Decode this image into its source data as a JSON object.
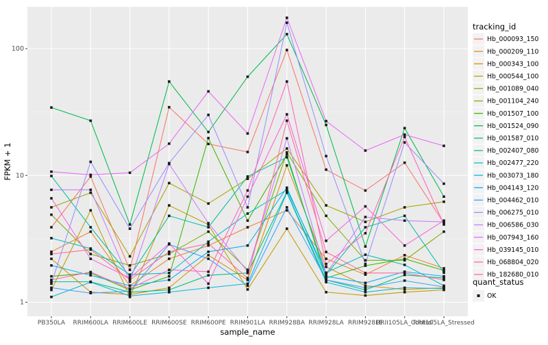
{
  "chart_data": {
    "type": "line",
    "title": "",
    "xlabel": "sample_name",
    "ylabel": "FPKM + 1",
    "y_scale": "log10",
    "y_ticks": [
      "1",
      "10",
      "100"
    ],
    "y_tick_values": [
      1,
      10,
      100
    ],
    "y_minor_values": [
      3.1623,
      31.623
    ],
    "grid": true,
    "legend_position": "right",
    "categories": [
      "PB350LA",
      "RRIM600LA",
      "RRIM600LE",
      "RRIM600SE",
      "RRIM600PE",
      "RRIM901LA",
      "RRIM928BA",
      "RRIM928LA",
      "RRIM928LE",
      "RRII105LA_Control",
      "RRII105LA_Stressed"
    ],
    "legend": {
      "title": "tracking_id"
    },
    "quant_legend": {
      "title": "quant_status",
      "items": [
        {
          "label": "OK",
          "symbol": "black-square"
        }
      ]
    },
    "colors": {
      "background": "#FFFFFF",
      "panel_bg": "#EBEBEB",
      "grid_major": "#FFFFFF",
      "grid_minor": "#F7F7F7",
      "tick_text": "#4D4D4D",
      "axis_title": "#000000",
      "point": "#1A1A1A",
      "legend_key_bg": "#F2F2F2"
    },
    "series": [
      {
        "name": "Hb_000093_150",
        "color": "#F8766D",
        "values": [
          3.9,
          9.8,
          1.8,
          34.5,
          17.7,
          15.3,
          97.5,
          11.1,
          7.6,
          12.6,
          4.2
        ]
      },
      {
        "name": "Hb_000209_110",
        "color": "#EA8331",
        "values": [
          2.5,
          3.6,
          1.35,
          2.2,
          2.8,
          3.9,
          5.3,
          2.2,
          1.65,
          2.35,
          1.85
        ]
      },
      {
        "name": "Hb_000343_100",
        "color": "#D89000",
        "values": [
          2.2,
          1.2,
          1.15,
          1.3,
          2.35,
          1.5,
          12.0,
          1.9,
          1.35,
          1.26,
          1.3
        ]
      },
      {
        "name": "Hb_000544_100",
        "color": "#C09B00",
        "values": [
          1.25,
          5.3,
          1.1,
          5.8,
          4.1,
          1.26,
          3.8,
          1.2,
          1.13,
          1.2,
          1.25
        ]
      },
      {
        "name": "Hb_001089_040",
        "color": "#A3A500",
        "values": [
          5.6,
          7.3,
          2.3,
          8.7,
          6.0,
          9.4,
          16.3,
          5.8,
          4.3,
          5.6,
          6.2
        ]
      },
      {
        "name": "Hb_001104_240",
        "color": "#7CAE00",
        "values": [
          4.9,
          2.4,
          1.95,
          2.4,
          3.6,
          1.8,
          15.2,
          4.8,
          2.14,
          2.14,
          3.6
        ]
      },
      {
        "name": "Hb_001507_100",
        "color": "#39B600",
        "values": [
          1.6,
          1.7,
          1.25,
          1.6,
          19.7,
          4.4,
          14.6,
          1.55,
          1.94,
          2.2,
          1.78
        ]
      },
      {
        "name": "Hb_001524_090",
        "color": "#00BB4E",
        "values": [
          34.3,
          27,
          4.1,
          55,
          22,
          60,
          130,
          25,
          2.75,
          23.6,
          6.8
        ]
      },
      {
        "name": "Hb_001587_010",
        "color": "#00BF7D",
        "values": [
          1.45,
          1.45,
          1.2,
          1.25,
          1.63,
          1.7,
          7.4,
          1.5,
          1.25,
          1.64,
          1.55
        ]
      },
      {
        "name": "Hb_002407_080",
        "color": "#00C1A3",
        "values": [
          9.9,
          3.9,
          1.6,
          4.8,
          3.9,
          9.8,
          13.9,
          1.65,
          3.9,
          4.8,
          1.71
        ]
      },
      {
        "name": "Hb_002477_220",
        "color": "#00BFC4",
        "values": [
          3.2,
          2.65,
          1.65,
          1.7,
          3.0,
          5.0,
          7.7,
          1.71,
          2.37,
          1.97,
          1.35
        ]
      },
      {
        "name": "Hb_003073_180",
        "color": "#00BAE0",
        "values": [
          1.1,
          1.44,
          1.12,
          1.2,
          1.3,
          1.4,
          7.3,
          1.44,
          1.2,
          1.3,
          1.28
        ]
      },
      {
        "name": "Hb_004143_120",
        "color": "#00B0F6",
        "values": [
          1.95,
          1.63,
          1.35,
          1.5,
          2.5,
          2.8,
          8.0,
          1.6,
          1.42,
          1.74,
          1.6
        ]
      },
      {
        "name": "Hb_004462_010",
        "color": "#35A2FF",
        "values": [
          1.3,
          1.18,
          1.22,
          2.86,
          2.2,
          1.35,
          5.6,
          1.5,
          1.3,
          1.48,
          1.32
        ]
      },
      {
        "name": "Hb_006275_010",
        "color": "#9590FF",
        "values": [
          1.4,
          12.8,
          3.8,
          12.5,
          30,
          5.6,
          160,
          14.2,
          2.0,
          18.2,
          8.6
        ]
      },
      {
        "name": "Hb_006586_030",
        "color": "#C77CFF",
        "values": [
          7.7,
          7.7,
          1.45,
          12.3,
          4.2,
          1.75,
          19.6,
          1.68,
          4.7,
          4.4,
          4.3
        ]
      },
      {
        "name": "Hb_007943_160",
        "color": "#E76BF3",
        "values": [
          10.7,
          10.1,
          10.5,
          17.8,
          46,
          21.4,
          175,
          26.8,
          15.7,
          21,
          17.1
        ]
      },
      {
        "name": "Hb_039145_010",
        "color": "#FA62DB",
        "values": [
          6.6,
          2.2,
          1.55,
          2.9,
          1.4,
          6.8,
          30.3,
          3.05,
          5.7,
          2.8,
          4.4
        ]
      },
      {
        "name": "Hb_068804_020",
        "color": "#FF62BC",
        "values": [
          1.5,
          1.73,
          1.28,
          1.8,
          1.74,
          7.6,
          55,
          2.0,
          3.5,
          20.1,
          4.1
        ]
      },
      {
        "name": "Hb_182680_010",
        "color": "#FF6A98",
        "values": [
          2.4,
          2.6,
          1.5,
          2.5,
          2.9,
          1.55,
          27,
          2.49,
          1.7,
          1.7,
          1.5
        ]
      }
    ]
  }
}
